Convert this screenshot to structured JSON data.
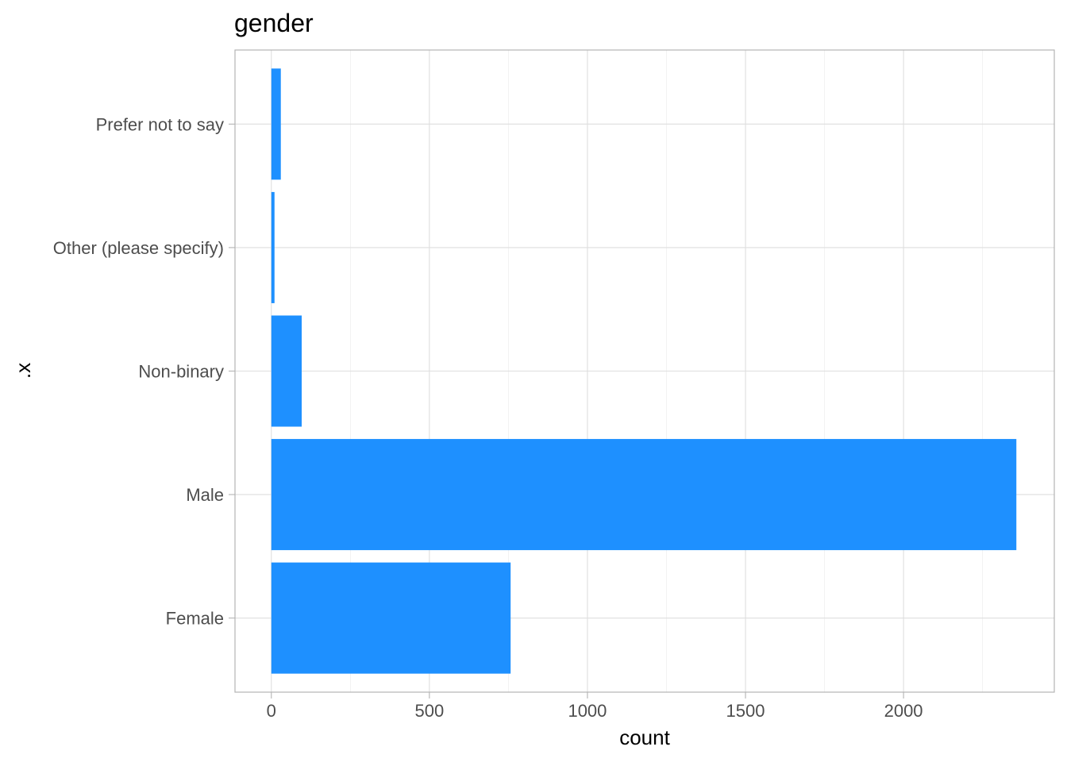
{
  "chart_data": {
    "type": "bar",
    "orientation": "horizontal",
    "title": "gender",
    "xlabel": "count",
    "ylabel": ".x",
    "categories": [
      "Female",
      "Male",
      "Non-binary",
      "Other (please specify)",
      "Prefer not to say"
    ],
    "values": [
      757,
      2357,
      96,
      10,
      30
    ],
    "xlim": [
      -115,
      2477
    ],
    "x_ticks": [
      0,
      500,
      1000,
      1500,
      2000
    ],
    "x_tick_labels": [
      "0",
      "500",
      "1000",
      "1500",
      "2000"
    ],
    "x_minor_ticks": [
      250,
      750,
      1250,
      1750,
      2250
    ],
    "grid": true,
    "legend": "none",
    "bar_color": "#1e90ff"
  }
}
